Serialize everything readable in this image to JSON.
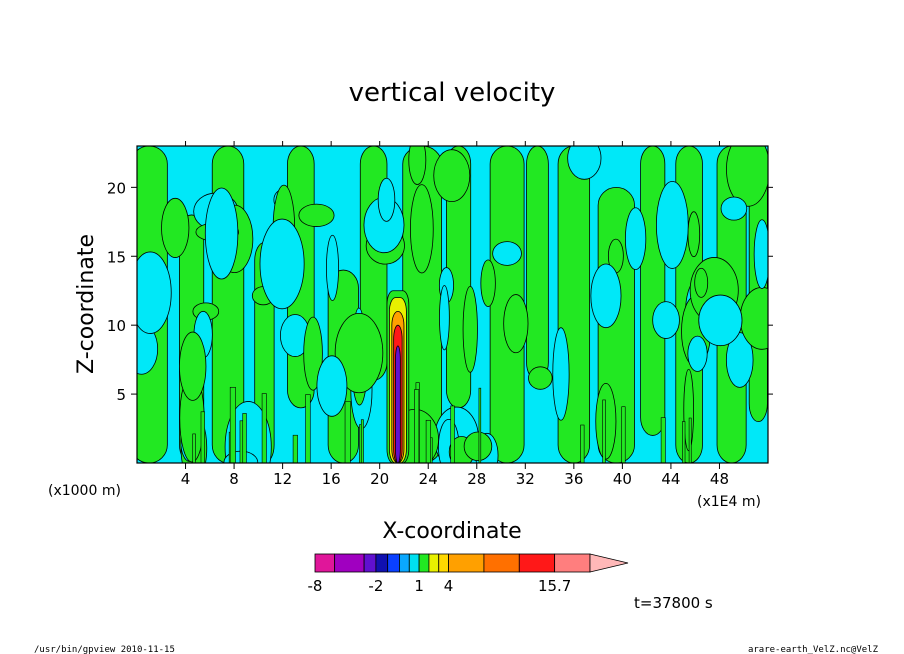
{
  "chart_data": {
    "type": "heatmap",
    "title": "vertical velocity",
    "xlabel": "X-coordinate",
    "ylabel": "Z-coordinate",
    "x_unit_left": "(x1000 m)",
    "x_unit_right": "(x1E4 m)",
    "xlim": [
      0,
      52
    ],
    "ylim": [
      0,
      23
    ],
    "x_ticks": [
      "4",
      "8",
      "12",
      "16",
      "20",
      "24",
      "28",
      "32",
      "36",
      "40",
      "44",
      "48"
    ],
    "x_tick_values": [
      4,
      8,
      12,
      16,
      20,
      24,
      28,
      32,
      36,
      40,
      44,
      48
    ],
    "y_ticks": [
      "5",
      "10",
      "15",
      "20"
    ],
    "y_tick_values": [
      5,
      10,
      15,
      20
    ],
    "colorbar": {
      "levels": [
        -8,
        -6,
        -4,
        -2,
        -1,
        0,
        0.5,
        1,
        2,
        3,
        4,
        7,
        11,
        15.7
      ],
      "labels": [
        "-8",
        "-2",
        "1",
        "4",
        "15.7"
      ],
      "label_values": [
        -8,
        -2,
        1,
        4,
        15.7
      ],
      "colors": [
        "#e0169a",
        "#a000c0",
        "#6010d0",
        "#1010b0",
        "#0a40ff",
        "#0aa8ff",
        "#00e0f0",
        "#22e822",
        "#e8f000",
        "#ffd800",
        "#ffa000",
        "#ff7000",
        "#ff1818",
        "#ff7e7e",
        "#ffb8b8"
      ]
    },
    "dominant_regions": {
      "positive_weak_color": "#22e822",
      "negative_weak_color": "#00e8f8"
    },
    "convective_core": {
      "x": 21.5,
      "z_top": 12.5,
      "max_value": 15.7
    },
    "time_label": "t=37800 s"
  },
  "footer": {
    "left": "/usr/bin/gpview   2010-11-15",
    "right": "arare-earth_VelZ.nc@VelZ"
  }
}
